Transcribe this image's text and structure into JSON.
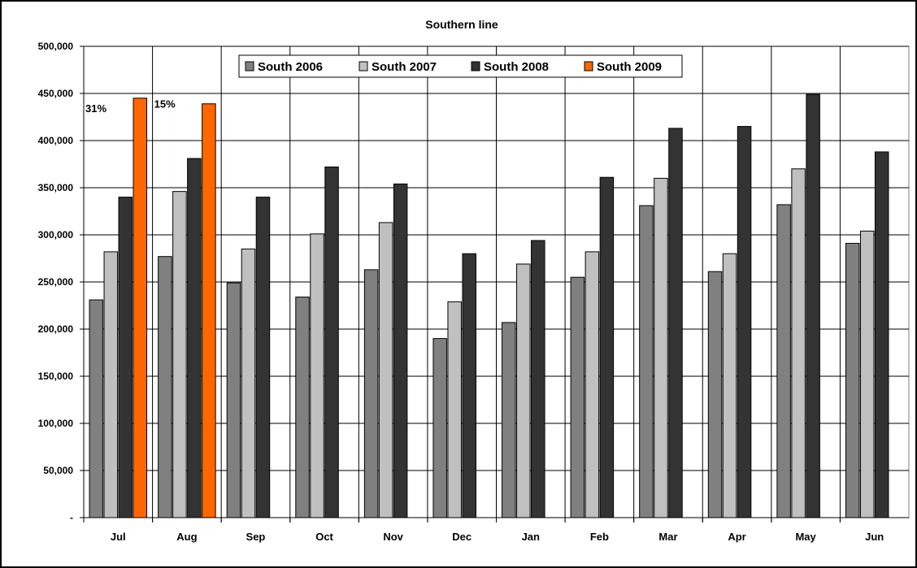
{
  "chart_data": {
    "type": "bar",
    "title": "Southern line",
    "xlabel": "",
    "ylabel": "",
    "categories": [
      "Jul",
      "Aug",
      "Sep",
      "Oct",
      "Nov",
      "Dec",
      "Jan",
      "Feb",
      "Mar",
      "Apr",
      "May",
      "Jun"
    ],
    "ylim": [
      0,
      500000
    ],
    "yticks": [
      0,
      50000,
      100000,
      150000,
      200000,
      250000,
      300000,
      350000,
      400000,
      450000,
      500000
    ],
    "ytick_labels": [
      "-",
      "50,000",
      "100,000",
      "150,000",
      "200,000",
      "250,000",
      "300,000",
      "350,000",
      "400,000",
      "450,000",
      "500,000"
    ],
    "grid": true,
    "legend_position": "top-center",
    "series": [
      {
        "name": "South 2006",
        "color": "#808080",
        "values": [
          231000,
          277000,
          249000,
          234000,
          263000,
          190000,
          207000,
          255000,
          331000,
          261000,
          332000,
          291000
        ]
      },
      {
        "name": "South 2007",
        "color": "#c0c0c0",
        "values": [
          282000,
          346000,
          285000,
          301000,
          313000,
          229000,
          269000,
          282000,
          360000,
          280000,
          370000,
          304000
        ]
      },
      {
        "name": "South 2008",
        "color": "#333333",
        "values": [
          340000,
          381000,
          340000,
          372000,
          354000,
          280000,
          294000,
          361000,
          413000,
          415000,
          449000,
          388000
        ]
      },
      {
        "name": "South 2009",
        "color": "#ff6600",
        "values": [
          445000,
          439000,
          null,
          null,
          null,
          null,
          null,
          null,
          null,
          null,
          null,
          null
        ]
      }
    ],
    "annotations": [
      {
        "text": "31%",
        "category": "Jul"
      },
      {
        "text": "15%",
        "category": "Aug"
      }
    ]
  }
}
